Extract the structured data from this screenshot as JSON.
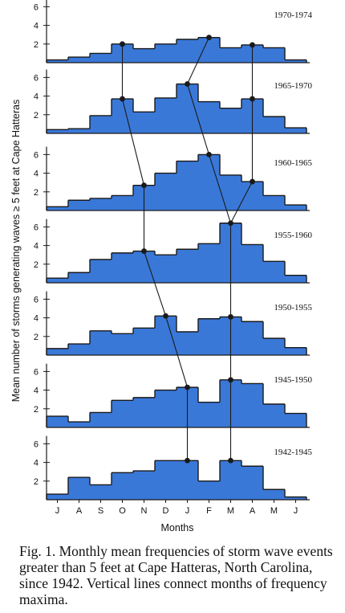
{
  "chart_data": {
    "type": "area",
    "style": "stepped",
    "panel_count": 7,
    "categories": [
      "J",
      "A",
      "S",
      "O",
      "N",
      "D",
      "J",
      "F",
      "M",
      "A",
      "M",
      "J"
    ],
    "xlabel": "Months",
    "ylabel": "Mean number of storms generating waves ≥ 5 feet at Cape Hatteras",
    "ylim": [
      0,
      6.5
    ],
    "yticks": [
      2,
      4,
      6
    ],
    "fill_color": "#3a78d8",
    "line_color": "#1a1a1a",
    "panels": [
      {
        "name": "1970-1974",
        "values": [
          0.3,
          0.6,
          1.0,
          2.0,
          1.5,
          2.0,
          2.5,
          2.7,
          1.6,
          1.9,
          1.6,
          0.3
        ],
        "maxima": [
          3,
          7,
          9
        ]
      },
      {
        "name": "1965-1970",
        "values": [
          0.4,
          0.5,
          1.9,
          3.7,
          2.3,
          3.8,
          5.3,
          3.4,
          2.7,
          3.7,
          1.8,
          0.6
        ],
        "maxima": [
          3,
          6,
          9
        ]
      },
      {
        "name": "1960-1965",
        "values": [
          0.4,
          1.1,
          1.3,
          1.6,
          2.7,
          4.0,
          5.3,
          6.0,
          3.8,
          3.1,
          1.6,
          0.6
        ],
        "maxima": [
          4,
          7,
          9
        ]
      },
      {
        "name": "1955-1960",
        "values": [
          0.5,
          1.1,
          2.5,
          3.2,
          3.4,
          3.0,
          3.6,
          4.2,
          6.4,
          4.1,
          2.3,
          0.8
        ],
        "maxima": [
          4,
          8
        ]
      },
      {
        "name": "1950-1955",
        "values": [
          0.7,
          1.2,
          2.6,
          2.3,
          2.9,
          4.2,
          2.5,
          3.9,
          4.1,
          3.6,
          1.8,
          0.8
        ],
        "maxima": [
          5,
          8
        ]
      },
      {
        "name": "1945-1950",
        "values": [
          1.2,
          0.6,
          1.6,
          2.9,
          3.2,
          4.0,
          4.3,
          2.7,
          5.1,
          4.7,
          2.5,
          1.5
        ],
        "maxima": [
          6,
          8
        ]
      },
      {
        "name": "1942-1945",
        "values": [
          0.6,
          2.4,
          1.6,
          2.9,
          3.1,
          4.2,
          4.2,
          2.0,
          4.2,
          3.6,
          1.1,
          0.3
        ],
        "maxima": [
          6,
          8
        ]
      }
    ]
  },
  "caption": "Fig. 1. Monthly mean frequencies of storm wave events greater than 5 feet at Cape Hatteras, North Carolina, since 1942. Vertical lines connect months of frequency maxima."
}
